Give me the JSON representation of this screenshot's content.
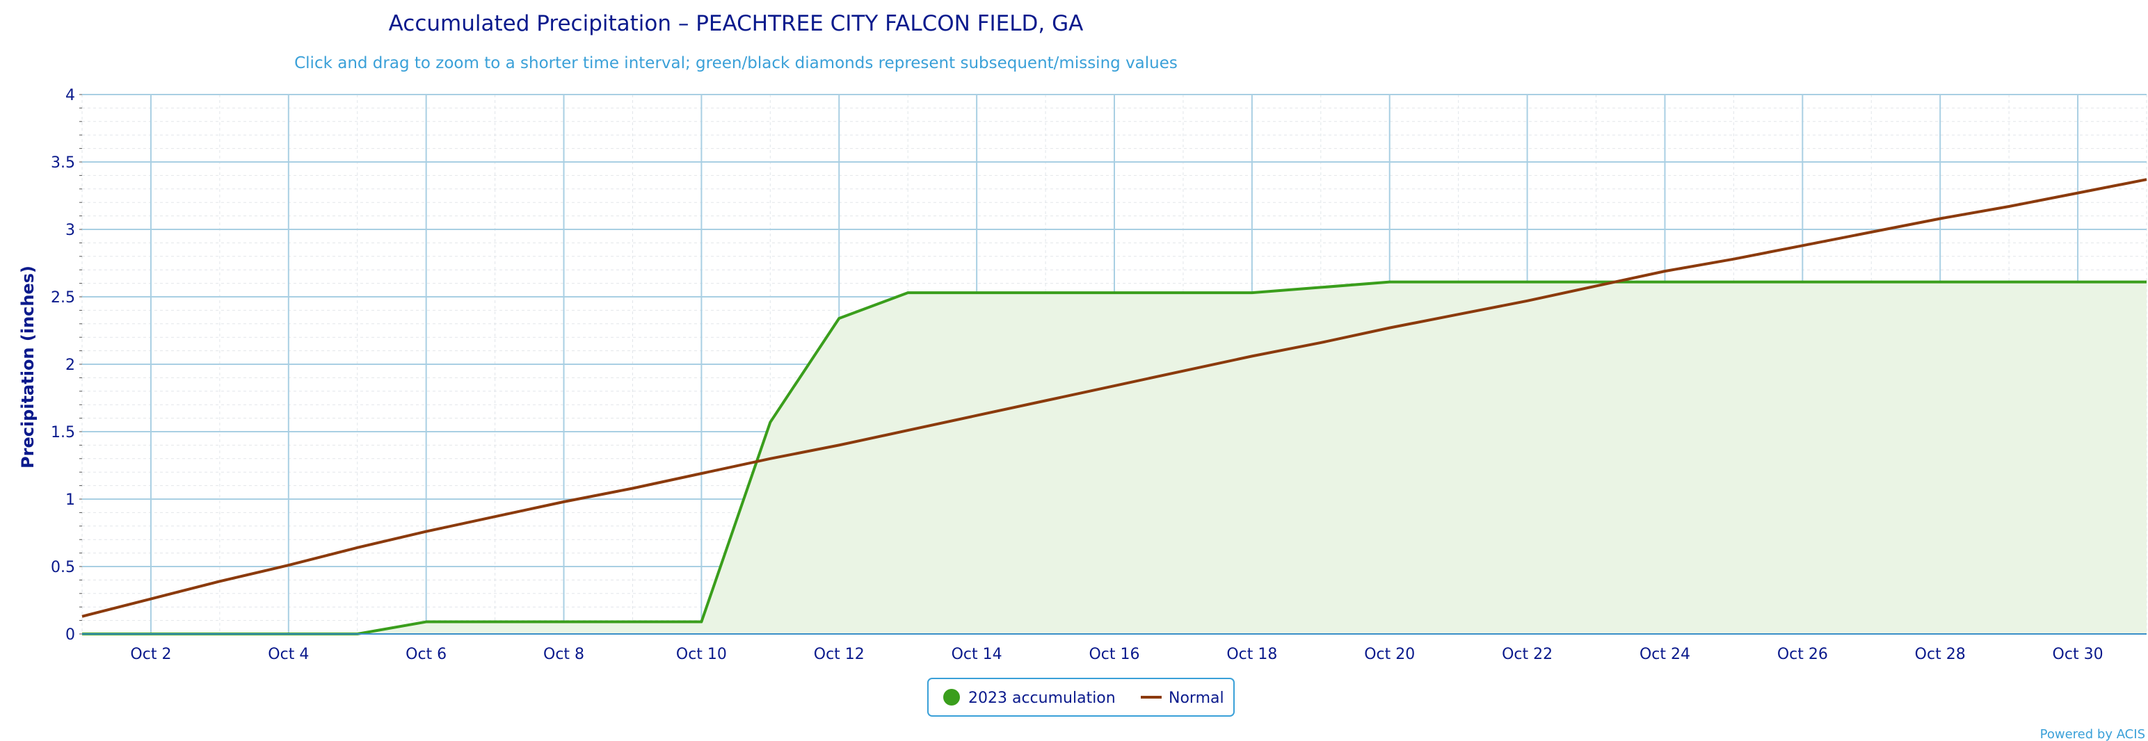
{
  "chart_data": {
    "type": "line",
    "title": "Accumulated Precipitation – PEACHTREE CITY FALCON FIELD, GA",
    "subtitle": "Click and drag to zoom to a shorter time interval; green/black diamonds represent subsequent/missing values",
    "ylabel": "Precipitation (inches)",
    "xlabel": "",
    "ylim": [
      0,
      4
    ],
    "yticks": [
      {
        "value": 0,
        "label": "0"
      },
      {
        "value": 0.5,
        "label": "0.5"
      },
      {
        "value": 1,
        "label": "1"
      },
      {
        "value": 1.5,
        "label": "1.5"
      },
      {
        "value": 2,
        "label": "2"
      },
      {
        "value": 2.5,
        "label": "2.5"
      },
      {
        "value": 3,
        "label": "3"
      },
      {
        "value": 3.5,
        "label": "3.5"
      },
      {
        "value": 4,
        "label": "4"
      }
    ],
    "xlim": [
      1,
      31
    ],
    "xticks": [
      {
        "value": 2,
        "label": "Oct 2"
      },
      {
        "value": 4,
        "label": "Oct 4"
      },
      {
        "value": 6,
        "label": "Oct 6"
      },
      {
        "value": 8,
        "label": "Oct 8"
      },
      {
        "value": 10,
        "label": "Oct 10"
      },
      {
        "value": 12,
        "label": "Oct 12"
      },
      {
        "value": 14,
        "label": "Oct 14"
      },
      {
        "value": 16,
        "label": "Oct 16"
      },
      {
        "value": 18,
        "label": "Oct 18"
      },
      {
        "value": 20,
        "label": "Oct 20"
      },
      {
        "value": 22,
        "label": "Oct 22"
      },
      {
        "value": 24,
        "label": "Oct 24"
      },
      {
        "value": 26,
        "label": "Oct 26"
      },
      {
        "value": 28,
        "label": "Oct 28"
      },
      {
        "value": 30,
        "label": "Oct 30"
      }
    ],
    "grid": true,
    "legend_position": "bottom-center",
    "series": [
      {
        "name": "2023 accumulation",
        "color": "#3a9e1c",
        "area": true,
        "x": [
          1,
          2,
          3,
          4,
          5,
          6,
          7,
          8,
          9,
          10,
          11,
          12,
          13,
          14,
          15,
          16,
          17,
          18,
          19,
          20,
          21,
          22,
          23,
          24,
          25,
          26,
          27,
          28,
          29,
          30,
          31
        ],
        "y": [
          0,
          0,
          0,
          0,
          0,
          0.09,
          0.09,
          0.09,
          0.09,
          0.09,
          1.57,
          2.34,
          2.53,
          2.53,
          2.53,
          2.53,
          2.53,
          2.53,
          2.57,
          2.61,
          2.61,
          2.61,
          2.61,
          2.61,
          2.61,
          2.61,
          2.61,
          2.61,
          2.61,
          2.61,
          2.61
        ]
      },
      {
        "name": "Normal",
        "color": "#8b3a0c",
        "area": false,
        "x": [
          1,
          2,
          3,
          4,
          5,
          6,
          7,
          8,
          9,
          10,
          11,
          12,
          13,
          14,
          15,
          16,
          17,
          18,
          19,
          20,
          21,
          22,
          23,
          24,
          25,
          26,
          27,
          28,
          29,
          30,
          31
        ],
        "y": [
          0.13,
          0.26,
          0.39,
          0.51,
          0.64,
          0.76,
          0.87,
          0.98,
          1.08,
          1.19,
          1.3,
          1.4,
          1.51,
          1.62,
          1.73,
          1.84,
          1.95,
          2.06,
          2.16,
          2.27,
          2.37,
          2.47,
          2.58,
          2.69,
          2.78,
          2.88,
          2.98,
          3.08,
          3.17,
          3.27,
          3.37
        ]
      }
    ],
    "background_colors": {
      "grid_major": "#a9cfe3",
      "grid_minor": "#e2e6ea",
      "area_fill": "#eaf4e4",
      "axis": "#3a8fc8"
    }
  },
  "legend": {
    "items": [
      {
        "label": "2023 accumulation",
        "color": "#3a9e1c",
        "symbol": "circle"
      },
      {
        "label": "Normal",
        "color": "#8b3a0c",
        "symbol": "line"
      }
    ]
  },
  "credit": "Powered by ACIS"
}
